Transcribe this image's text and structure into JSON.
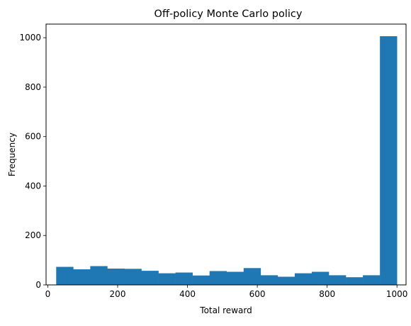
{
  "chart_data": {
    "type": "bar",
    "title": "Off-policy Monte Carlo policy",
    "xlabel": "Total reward",
    "ylabel": "Frequency",
    "bar_color": "#1f77b4",
    "xlim": [
      -5,
      1026
    ],
    "ylim": [
      0,
      1055
    ],
    "grid": false,
    "bin_edges": [
      24,
      72.8,
      121.6,
      170.4,
      219.2,
      268,
      316.8,
      365.6,
      414.4,
      463.2,
      512,
      560.8,
      609.6,
      658.4,
      707.2,
      756,
      804.8,
      853.6,
      902.4,
      951.2,
      1000
    ],
    "values": [
      73,
      63,
      76,
      66,
      65,
      57,
      47,
      50,
      38,
      56,
      53,
      68,
      39,
      33,
      47,
      53,
      39,
      31,
      39,
      1006
    ],
    "xticks": [
      "0",
      "200",
      "400",
      "600",
      "800",
      "1000"
    ],
    "yticks": [
      "0",
      "200",
      "400",
      "600",
      "800",
      "1000"
    ]
  }
}
